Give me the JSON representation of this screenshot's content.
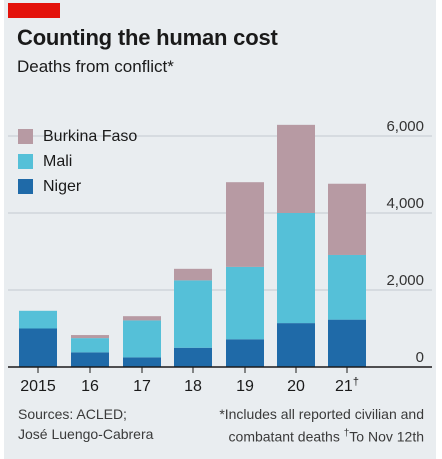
{
  "header": {
    "title": "Counting the human cost",
    "subtitle": "Deaths from conflict*"
  },
  "chart_data": {
    "type": "bar",
    "stacked": true,
    "categories": [
      "2015",
      "16",
      "17",
      "18",
      "19",
      "20",
      "21"
    ],
    "category_marks": [
      "",
      "",
      "",
      "",
      "",
      "",
      "†"
    ],
    "series": [
      {
        "name": "Niger",
        "color": "#1f6aa8",
        "values": [
          1000,
          380,
          250,
          500,
          720,
          1140,
          1230
        ]
      },
      {
        "name": "Mali",
        "color": "#55c0d8",
        "values": [
          460,
          370,
          960,
          1750,
          1880,
          2860,
          1680
        ]
      },
      {
        "name": "Burkina Faso",
        "color": "#b79aa3",
        "values": [
          0,
          80,
          110,
          300,
          2200,
          2290,
          1850
        ]
      }
    ],
    "legend_order": [
      "Burkina Faso",
      "Mali",
      "Niger"
    ],
    "y_ticks": [
      0,
      2000,
      4000,
      6000
    ],
    "y_tick_labels": [
      "0",
      "2,000",
      "4,000",
      "6,000"
    ],
    "ylim": [
      0,
      7000
    ],
    "legend_position": "top-left",
    "grid": true
  },
  "footer": {
    "sources_line1": "Sources: ACLED;",
    "sources_line2": "José Luengo-Cabrera",
    "note_line1": "*Includes all reported civilian and",
    "note_line2_a": "combatant deaths  ",
    "note_line2_mark": "†",
    "note_line2_b": "To Nov 12th"
  }
}
